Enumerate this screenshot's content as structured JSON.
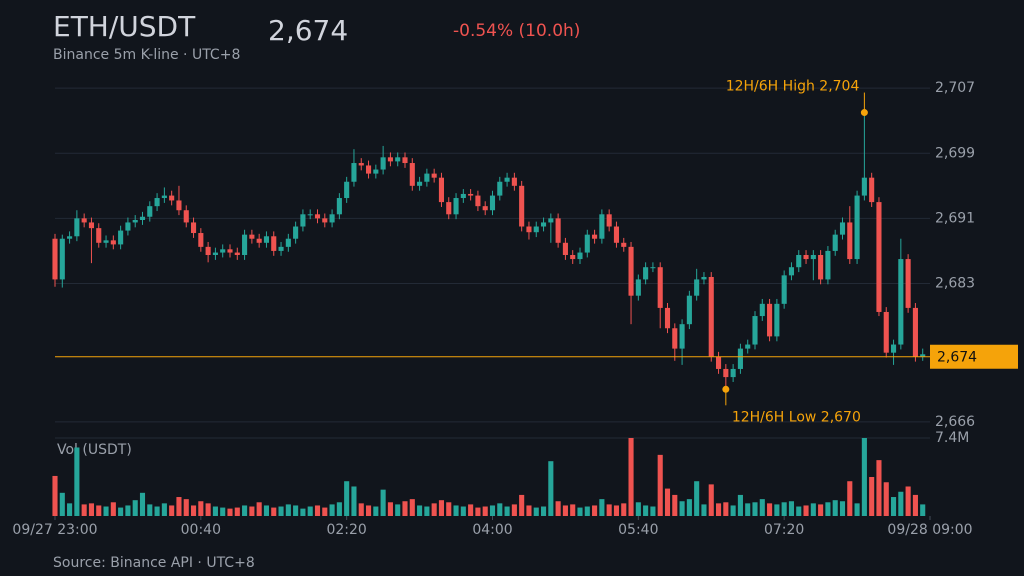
{
  "header": {
    "title": "ETH/USDT",
    "subtitle": "Binance 5m K-line · UTC+8",
    "price": {
      "value": 2674,
      "label": "2,674"
    },
    "change": "-0.54% (10.0h)"
  },
  "chart_data": {
    "type": "candlestick",
    "up_color": "#26a69a",
    "down_color": "#ef5350",
    "accent_color": "#f5a30a",
    "xlim": [
      0,
      120
    ],
    "xticks": [
      {
        "value": 0,
        "label": "09/27 23:00"
      },
      {
        "value": 20,
        "label": "00:40"
      },
      {
        "value": 40,
        "label": "02:20"
      },
      {
        "value": 60,
        "label": "04:00"
      },
      {
        "value": 80,
        "label": "05:40"
      },
      {
        "value": 100,
        "label": "07:20"
      },
      {
        "value": 120,
        "label": "09/28 09:00"
      }
    ],
    "ylim": [
      2665,
      2708
    ],
    "yticks": [
      {
        "value": 2666,
        "label": "2,666"
      },
      {
        "value": 2683,
        "label": "2,683"
      },
      {
        "value": 2691,
        "label": "2,691"
      },
      {
        "value": 2699,
        "label": "2,699"
      },
      {
        "value": 2707,
        "label": "2,707"
      }
    ],
    "grid": true,
    "open": [
      2688.5,
      2683.5,
      2688.5,
      2688.8,
      2691.0,
      2690.5,
      2689.8,
      2688.0,
      2688.3,
      2687.8,
      2689.5,
      2690.5,
      2690.8,
      2691.2,
      2692.5,
      2693.5,
      2693.8,
      2693.2,
      2692.0,
      2690.5,
      2689.2,
      2687.5,
      2686.5,
      2686.8,
      2687.2,
      2686.8,
      2686.5,
      2689.0,
      2688.5,
      2688.0,
      2688.8,
      2687.0,
      2687.5,
      2688.5,
      2690.0,
      2691.5,
      2691.5,
      2691.0,
      2690.5,
      2691.5,
      2693.5,
      2695.5,
      2697.8,
      2697.5,
      2696.5,
      2697.0,
      2698.5,
      2698.0,
      2698.5,
      2697.8,
      2695.0,
      2695.5,
      2696.5,
      2696.0,
      2693.0,
      2691.5,
      2693.5,
      2694.0,
      2693.8,
      2692.5,
      2692.0,
      2693.8,
      2695.5,
      2696.0,
      2695.0,
      2690.0,
      2689.3,
      2690.0,
      2690.5,
      2691.0,
      2688.0,
      2686.5,
      2686.0,
      2686.8,
      2689.0,
      2688.5,
      2691.5,
      2690.0,
      2688.0,
      2687.5,
      2681.5,
      2683.5,
      2685.0,
      2685.0,
      2680.0,
      2677.5,
      2675.0,
      2678.0,
      2681.5,
      2683.5,
      2683.8,
      2674.0,
      2672.5,
      2671.5,
      2672.5,
      2675.0,
      2675.5,
      2679.0,
      2680.5,
      2676.5,
      2680.5,
      2684.0,
      2685.0,
      2686.5,
      2686.0,
      2686.5,
      2683.5,
      2687.0,
      2689.0,
      2690.5,
      2686.0,
      2693.8,
      2696.0,
      2693.0,
      2679.5,
      2674.5,
      2675.5,
      2686.0,
      2680.0,
      2674.0
    ],
    "high": [
      2689.1,
      2689.0,
      2689.4,
      2692.0,
      2691.6,
      2691.1,
      2690.4,
      2688.9,
      2688.9,
      2690.1,
      2691.1,
      2691.4,
      2691.8,
      2693.1,
      2694.1,
      2694.8,
      2694.4,
      2695.0,
      2692.6,
      2691.1,
      2689.8,
      2688.1,
      2687.4,
      2687.8,
      2687.8,
      2687.4,
      2689.6,
      2689.6,
      2689.1,
      2689.4,
      2689.4,
      2688.1,
      2689.1,
      2690.6,
      2692.1,
      2692.1,
      2692.1,
      2691.6,
      2692.1,
      2694.1,
      2696.1,
      2699.5,
      2698.4,
      2698.1,
      2697.6,
      2699.9,
      2699.1,
      2699.1,
      2699.1,
      2698.4,
      2696.1,
      2697.1,
      2697.1,
      2696.6,
      2693.6,
      2694.1,
      2694.6,
      2694.6,
      2694.4,
      2693.1,
      2694.4,
      2696.1,
      2696.6,
      2696.6,
      2695.6,
      2690.6,
      2690.6,
      2691.1,
      2691.6,
      2691.6,
      2688.6,
      2687.1,
      2687.4,
      2689.6,
      2689.6,
      2692.1,
      2692.1,
      2690.6,
      2688.6,
      2688.1,
      2684.1,
      2685.6,
      2685.6,
      2685.6,
      2680.6,
      2678.1,
      2678.6,
      2682.1,
      2684.8,
      2684.4,
      2684.4,
      2674.6,
      2673.1,
      2673.1,
      2675.6,
      2676.1,
      2679.6,
      2681.1,
      2681.1,
      2681.1,
      2684.6,
      2685.6,
      2687.1,
      2687.1,
      2687.1,
      2687.1,
      2687.6,
      2689.6,
      2691.1,
      2692.5,
      2694.4,
      2704.0,
      2696.6,
      2693.6,
      2680.1,
      2676.1,
      2688.5,
      2686.6,
      2680.6,
      2675.0
    ],
    "low": [
      2682.6,
      2682.5,
      2687.9,
      2688.2,
      2689.9,
      2685.5,
      2687.4,
      2687.4,
      2687.2,
      2687.2,
      2688.9,
      2689.9,
      2690.2,
      2690.6,
      2691.9,
      2692.9,
      2692.6,
      2691.4,
      2689.9,
      2688.6,
      2686.9,
      2685.6,
      2685.9,
      2686.2,
      2686.2,
      2685.9,
      2685.9,
      2687.9,
      2687.4,
      2687.4,
      2686.4,
      2686.4,
      2686.9,
      2687.9,
      2689.4,
      2690.9,
      2690.4,
      2689.9,
      2689.9,
      2690.9,
      2692.9,
      2694.9,
      2696.9,
      2695.9,
      2695.9,
      2696.4,
      2697.4,
      2697.4,
      2697.2,
      2694.4,
      2694.4,
      2694.9,
      2695.4,
      2692.4,
      2690.9,
      2690.9,
      2692.9,
      2693.2,
      2691.9,
      2691.4,
      2691.4,
      2693.2,
      2694.9,
      2694.4,
      2689.4,
      2688.4,
      2688.7,
      2689.4,
      2688.0,
      2687.4,
      2685.9,
      2685.4,
      2685.4,
      2686.2,
      2687.9,
      2687.9,
      2689.4,
      2687.4,
      2686.9,
      2678.0,
      2680.9,
      2682.9,
      2684.4,
      2677.5,
      2676.9,
      2673.5,
      2673.0,
      2677.4,
      2680.9,
      2682.9,
      2673.4,
      2671.9,
      2670.0,
      2670.9,
      2671.9,
      2674.4,
      2674.9,
      2678.4,
      2675.9,
      2675.9,
      2679.9,
      2683.4,
      2684.4,
      2685.4,
      2683.4,
      2682.9,
      2682.9,
      2686.4,
      2688.4,
      2685.4,
      2685.4,
      2693.2,
      2692.4,
      2679.0,
      2673.9,
      2673.0,
      2674.9,
      2679.4,
      2673.4,
      2673.5
    ],
    "close": [
      2683.5,
      2688.5,
      2688.8,
      2691.0,
      2690.5,
      2689.8,
      2688.0,
      2688.3,
      2687.8,
      2689.5,
      2690.5,
      2690.8,
      2691.2,
      2692.5,
      2693.5,
      2693.8,
      2693.2,
      2692.0,
      2690.5,
      2689.2,
      2687.5,
      2686.5,
      2686.8,
      2687.2,
      2686.8,
      2686.5,
      2689.0,
      2688.5,
      2688.0,
      2688.8,
      2687.0,
      2687.5,
      2688.5,
      2690.0,
      2691.5,
      2691.5,
      2691.0,
      2690.5,
      2691.5,
      2693.5,
      2695.5,
      2697.8,
      2697.5,
      2696.5,
      2697.0,
      2698.5,
      2698.0,
      2698.5,
      2697.8,
      2695.0,
      2695.5,
      2696.5,
      2696.0,
      2693.0,
      2691.5,
      2693.5,
      2694.0,
      2693.8,
      2692.5,
      2692.0,
      2693.8,
      2695.5,
      2696.0,
      2695.0,
      2690.0,
      2689.3,
      2690.0,
      2690.5,
      2691.0,
      2688.0,
      2686.5,
      2686.0,
      2686.8,
      2689.0,
      2688.5,
      2691.5,
      2690.0,
      2688.0,
      2687.5,
      2681.5,
      2683.5,
      2685.0,
      2685.0,
      2680.0,
      2677.5,
      2675.0,
      2678.0,
      2681.5,
      2683.5,
      2683.8,
      2674.0,
      2672.5,
      2671.5,
      2672.5,
      2675.0,
      2675.5,
      2679.0,
      2680.5,
      2676.5,
      2680.5,
      2684.0,
      2685.0,
      2686.5,
      2686.0,
      2686.5,
      2683.5,
      2687.0,
      2689.0,
      2690.5,
      2686.0,
      2693.8,
      2696.0,
      2693.0,
      2679.5,
      2674.5,
      2675.5,
      2686.0,
      2680.0,
      2674.0,
      2674.3
    ],
    "volume_label": "Vol (USDT)",
    "volume_lim": [
      0,
      7.4
    ],
    "volume_ticks": [
      {
        "value": 7.4,
        "label": "7.4M"
      }
    ],
    "volume": [
      3.8,
      2.2,
      1.2,
      6.5,
      1.1,
      1.2,
      1.0,
      0.9,
      1.3,
      0.8,
      1.0,
      1.5,
      2.2,
      1.1,
      0.9,
      1.2,
      1.0,
      1.8,
      1.6,
      1.0,
      1.4,
      1.2,
      0.9,
      0.8,
      0.7,
      0.8,
      1.0,
      0.9,
      1.3,
      1.0,
      0.8,
      0.9,
      1.1,
      1.0,
      0.7,
      0.9,
      1.0,
      0.8,
      1.1,
      1.3,
      3.3,
      2.8,
      1.2,
      1.0,
      0.9,
      2.5,
      1.3,
      1.1,
      1.4,
      1.6,
      1.0,
      0.9,
      1.2,
      1.5,
      1.3,
      1.0,
      0.9,
      1.1,
      0.8,
      0.9,
      1.0,
      1.2,
      0.9,
      1.1,
      2.0,
      1.0,
      0.8,
      0.9,
      5.2,
      1.4,
      1.0,
      1.1,
      0.8,
      0.9,
      1.0,
      1.6,
      1.1,
      1.0,
      1.2,
      7.4,
      1.3,
      1.0,
      0.9,
      5.8,
      2.6,
      2.0,
      1.4,
      1.6,
      3.3,
      1.1,
      3.0,
      1.2,
      1.3,
      1.0,
      2.0,
      1.2,
      1.3,
      1.6,
      1.2,
      1.1,
      1.3,
      1.4,
      0.9,
      1.0,
      1.2,
      1.1,
      1.3,
      1.5,
      1.4,
      3.3,
      1.2,
      7.4,
      3.7,
      5.3,
      3.2,
      1.8,
      2.3,
      2.8,
      2.0,
      1.1
    ],
    "annotations": [
      {
        "label": "12H/6H High 2,704",
        "value": 2704,
        "x": 111
      },
      {
        "label": "12H/6H Low 2,670",
        "value": 2670,
        "x": 92
      }
    ]
  },
  "footer": {
    "source": "Source: Binance API · UTC+8"
  }
}
